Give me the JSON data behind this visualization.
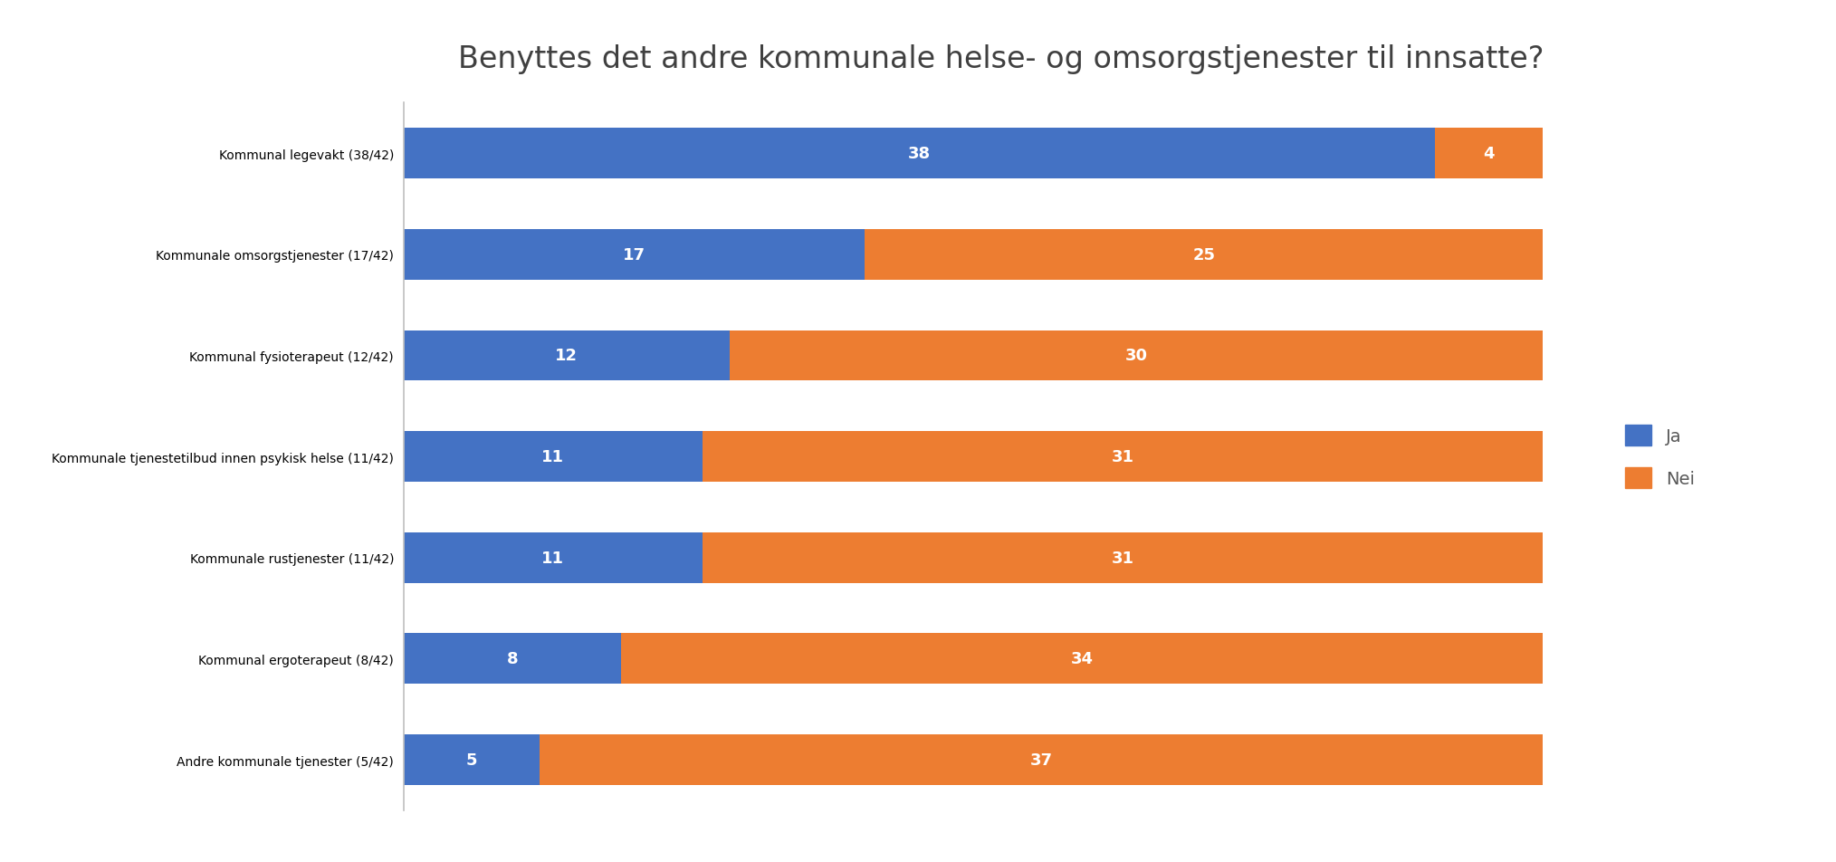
{
  "title": "Benyttes det andre kommunale helse- og omsorgstjenester til innsatte?",
  "categories": [
    "Kommunal legevakt (38/42)",
    "Kommunale omsorgstjenester (17/42)",
    "Kommunal fysioterapeut (12/42)",
    "Kommunale tjenestetilbud innen psykisk helse (11/42)",
    "Kommunale rustjenester (11/42)",
    "Kommunal ergoterapeut (8/42)",
    "Andre kommunale tjenester (5/42)"
  ],
  "ja_values": [
    38,
    17,
    12,
    11,
    11,
    8,
    5
  ],
  "nei_values": [
    4,
    25,
    30,
    31,
    31,
    34,
    37
  ],
  "ja_color": "#4472C4",
  "nei_color": "#ED7D31",
  "bar_height": 0.5,
  "title_fontsize": 24,
  "label_fontsize": 13,
  "bar_label_fontsize": 13,
  "legend_fontsize": 14,
  "background_color": "#ffffff",
  "text_color": "#595959",
  "title_color": "#404040",
  "xlim_max": 44
}
